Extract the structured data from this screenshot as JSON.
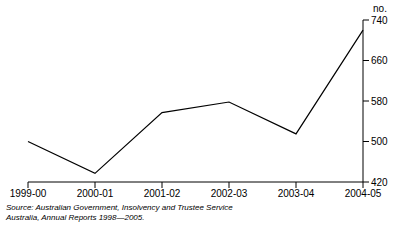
{
  "chart_data": {
    "type": "line",
    "y_label": "no.",
    "categories": [
      "1999-00",
      "2000-01",
      "2001-02",
      "2002-03",
      "2003-04",
      "2004-05"
    ],
    "values": [
      500,
      437,
      557,
      578,
      515,
      720
    ],
    "color": "#000000",
    "ylim": [
      420,
      740
    ],
    "yticks": [
      420,
      500,
      580,
      660,
      740
    ],
    "grid": false,
    "annotation": "Source: Australian Government, Insolvency and Trustee Service Australia, Annual Reports 1998—2005."
  }
}
